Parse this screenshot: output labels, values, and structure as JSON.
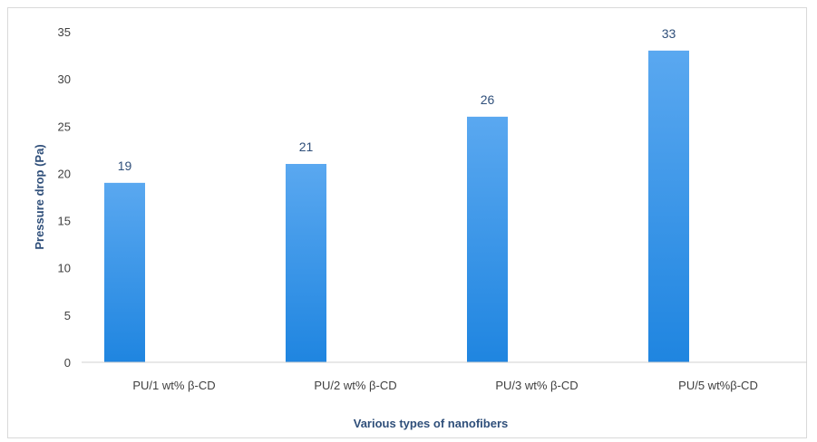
{
  "chart_data": {
    "type": "bar",
    "title": "",
    "xlabel": "Various types of nanofibers",
    "ylabel": "Pressure drop (Pa)",
    "categories": [
      "PU/1 wt% β-CD",
      "PU/2 wt% β-CD",
      "PU/3 wt% β-CD",
      "PU/5 wt%β-CD"
    ],
    "values": [
      19,
      21,
      26,
      33
    ],
    "data_labels": [
      "19",
      "21",
      "26",
      "33"
    ],
    "ylim": [
      0,
      35
    ],
    "yticks": [
      "0",
      "5",
      "10",
      "15",
      "20",
      "25",
      "30",
      "35"
    ],
    "grid": false,
    "legend": "none",
    "bar_color_top": "#5aa8f0",
    "bar_color_bottom": "#1f85e0"
  }
}
